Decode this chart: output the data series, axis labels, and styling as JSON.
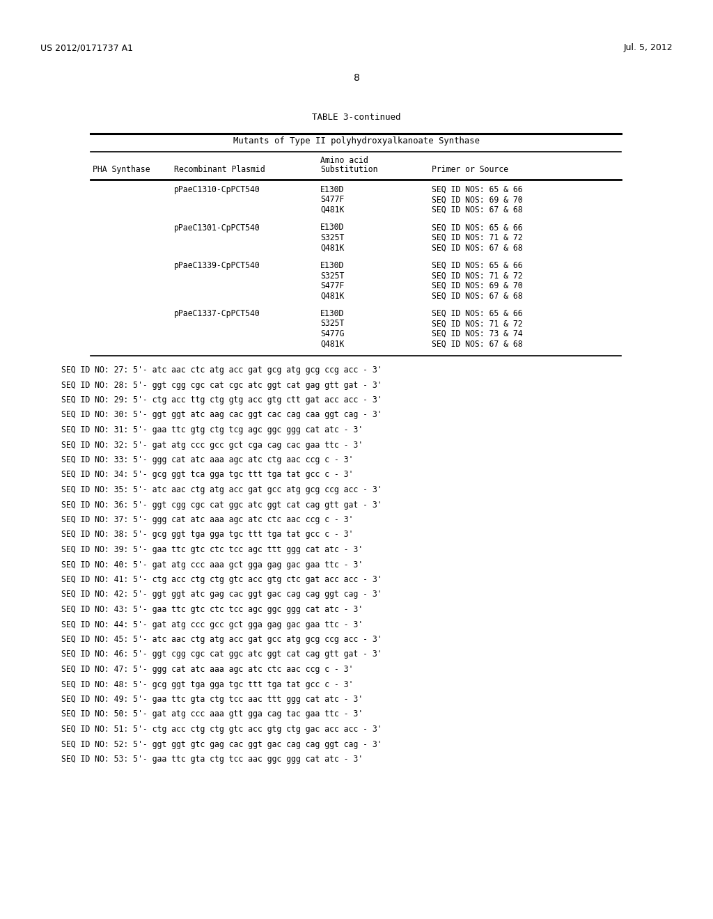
{
  "header_left": "US 2012/0171737 A1",
  "header_right": "Jul. 5, 2012",
  "page_number": "8",
  "table_title": "TABLE 3-continued",
  "table_subtitle": "Mutants of Type II polyhydroxyalkanoate Synthase",
  "groups": [
    {
      "plasmid": "pPaeC1310-CpPCT540",
      "rows": [
        [
          "E130D",
          "SEQ ID NOS: 65 & 66"
        ],
        [
          "S477F",
          "SEQ ID NOS: 69 & 70"
        ],
        [
          "Q481K",
          "SEQ ID NOS: 67 & 68"
        ]
      ]
    },
    {
      "plasmid": "pPaeC1301-CpPCT540",
      "rows": [
        [
          "E130D",
          "SEQ ID NOS: 65 & 66"
        ],
        [
          "S325T",
          "SEQ ID NOS: 71 & 72"
        ],
        [
          "Q481K",
          "SEQ ID NOS: 67 & 68"
        ]
      ]
    },
    {
      "plasmid": "pPaeC1339-CpPCT540",
      "rows": [
        [
          "E130D",
          "SEQ ID NOS: 65 & 66"
        ],
        [
          "S325T",
          "SEQ ID NOS: 71 & 72"
        ],
        [
          "S477F",
          "SEQ ID NOS: 69 & 70"
        ],
        [
          "Q481K",
          "SEQ ID NOS: 67 & 68"
        ]
      ]
    },
    {
      "plasmid": "pPaeC1337-CpPCT540",
      "rows": [
        [
          "E130D",
          "SEQ ID NOS: 65 & 66"
        ],
        [
          "S325T",
          "SEQ ID NOS: 71 & 72"
        ],
        [
          "S477G",
          "SEQ ID NOS: 73 & 74"
        ],
        [
          "Q481K",
          "SEQ ID NOS: 67 & 68"
        ]
      ]
    }
  ],
  "seq_lines": [
    "SEQ ID NO: 27: 5'- atc aac ctc atg acc gat gcg atg gcg ccg acc - 3'",
    "SEQ ID NO: 28: 5'- ggt cgg cgc cat cgc atc ggt cat gag gtt gat - 3'",
    "SEQ ID NO: 29: 5'- ctg acc ttg ctg gtg acc gtg ctt gat acc acc - 3'",
    "SEQ ID NO: 30: 5'- ggt ggt atc aag cac ggt cac cag caa ggt cag - 3'",
    "SEQ ID NO: 31: 5'- gaa ttc gtg ctg tcg agc ggc ggg cat atc - 3'",
    "SEQ ID NO: 32: 5'- gat atg ccc gcc gct cga cag cac gaa ttc - 3'",
    "SEQ ID NO: 33: 5'- ggg cat atc aaa agc atc ctg aac ccg c - 3'",
    "SEQ ID NO: 34: 5'- gcg ggt tca gga tgc ttt tga tat gcc c - 3'",
    "SEQ ID NO: 35: 5'- atc aac ctg atg acc gat gcc atg gcg ccg acc - 3'",
    "SEQ ID NO: 36: 5'- ggt cgg cgc cat ggc atc ggt cat cag gtt gat - 3'",
    "SEQ ID NO: 37: 5'- ggg cat atc aaa agc atc ctc aac ccg c - 3'",
    "SEQ ID NO: 38: 5'- gcg ggt tga gga tgc ttt tga tat gcc c - 3'",
    "SEQ ID NO: 39: 5'- gaa ttc gtc ctc tcc agc ttt ggg cat atc - 3'",
    "SEQ ID NO: 40: 5'- gat atg ccc aaa gct gga gag gac gaa ttc - 3'",
    "SEQ ID NO: 41: 5'- ctg acc ctg ctg gtc acc gtg ctc gat acc acc - 3'",
    "SEQ ID NO: 42: 5'- ggt ggt atc gag cac ggt gac cag cag ggt cag - 3'",
    "SEQ ID NO: 43: 5'- gaa ttc gtc ctc tcc agc ggc ggg cat atc - 3'",
    "SEQ ID NO: 44: 5'- gat atg ccc gcc gct gga gag gac gaa ttc - 3'",
    "SEQ ID NO: 45: 5'- atc aac ctg atg acc gat gcc atg gcg ccg acc - 3'",
    "SEQ ID NO: 46: 5'- ggt cgg cgc cat ggc atc ggt cat cag gtt gat - 3'",
    "SEQ ID NO: 47: 5'- ggg cat atc aaa agc atc ctc aac ccg c - 3'",
    "SEQ ID NO: 48: 5'- gcg ggt tga gga tgc ttt tga tat gcc c - 3'",
    "SEQ ID NO: 49: 5'- gaa ttc gta ctg tcc aac ttt ggg cat atc - 3'",
    "SEQ ID NO: 50: 5'- gat atg ccc aaa gtt gga cag tac gaa ttc - 3'",
    "SEQ ID NO: 51: 5'- ctg acc ctg ctg gtc acc gtg ctg gac acc acc - 3'",
    "SEQ ID NO: 52: 5'- ggt ggt gtc gag cac ggt gac cag cag ggt cag - 3'",
    "SEQ ID NO: 53: 5'- gaa ttc gta ctg tcc aac ggc ggg cat atc - 3'"
  ],
  "bg_color": "#ffffff",
  "text_color": "#000000"
}
